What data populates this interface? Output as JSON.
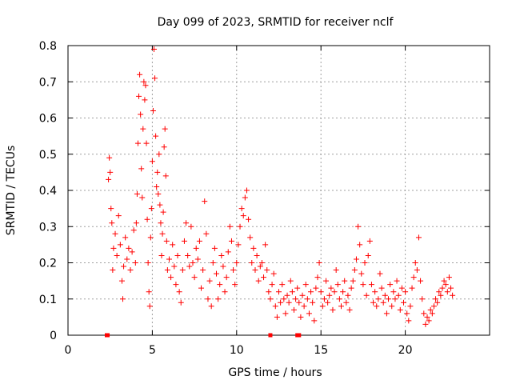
{
  "chart_data": {
    "type": "scatter",
    "title": "Day 099 of 2023, SRMTID for receiver nclf",
    "xlabel": "GPS time / hours",
    "ylabel": "SRMTID / TECUs",
    "xlim": [
      0,
      25
    ],
    "ylim": [
      0,
      0.8
    ],
    "x_ticks": [
      0,
      5,
      10,
      15,
      20
    ],
    "y_ticks": [
      0,
      0.1,
      0.2,
      0.3,
      0.4,
      0.5,
      0.6,
      0.7,
      0.8
    ],
    "x_tick_labels": [
      "0",
      "5",
      "10",
      "15",
      "20"
    ],
    "y_tick_labels": [
      "0",
      "0.1",
      "0.2",
      "0.3",
      "0.4",
      "0.5",
      "0.6",
      "0.7",
      "0.8"
    ],
    "grid": true,
    "marker": "+",
    "color": "#ff0000",
    "series": [
      {
        "name": "SRMTID",
        "points": [
          [
            2.3,
            0.0
          ],
          [
            2.35,
            0.0
          ],
          [
            12.0,
            0.0
          ],
          [
            13.6,
            0.0
          ],
          [
            13.7,
            0.0
          ],
          [
            2.4,
            0.43
          ],
          [
            2.45,
            0.49
          ],
          [
            2.5,
            0.45
          ],
          [
            2.55,
            0.35
          ],
          [
            2.6,
            0.31
          ],
          [
            2.65,
            0.18
          ],
          [
            2.7,
            0.24
          ],
          [
            2.8,
            0.28
          ],
          [
            2.9,
            0.22
          ],
          [
            3.0,
            0.33
          ],
          [
            3.1,
            0.25
          ],
          [
            3.2,
            0.15
          ],
          [
            3.25,
            0.1
          ],
          [
            3.3,
            0.19
          ],
          [
            3.4,
            0.27
          ],
          [
            3.5,
            0.21
          ],
          [
            3.6,
            0.24
          ],
          [
            3.7,
            0.18
          ],
          [
            3.8,
            0.23
          ],
          [
            3.9,
            0.29
          ],
          [
            4.0,
            0.2
          ],
          [
            4.05,
            0.31
          ],
          [
            4.1,
            0.39
          ],
          [
            4.15,
            0.53
          ],
          [
            4.2,
            0.66
          ],
          [
            4.25,
            0.72
          ],
          [
            4.3,
            0.61
          ],
          [
            4.35,
            0.46
          ],
          [
            4.4,
            0.38
          ],
          [
            4.45,
            0.57
          ],
          [
            4.5,
            0.7
          ],
          [
            4.55,
            0.65
          ],
          [
            4.6,
            0.69
          ],
          [
            4.65,
            0.53
          ],
          [
            4.7,
            0.32
          ],
          [
            4.75,
            0.2
          ],
          [
            4.8,
            0.12
          ],
          [
            4.85,
            0.08
          ],
          [
            4.9,
            0.27
          ],
          [
            4.95,
            0.35
          ],
          [
            5.0,
            0.48
          ],
          [
            5.05,
            0.62
          ],
          [
            5.1,
            0.79
          ],
          [
            5.15,
            0.71
          ],
          [
            5.2,
            0.55
          ],
          [
            5.25,
            0.41
          ],
          [
            5.3,
            0.45
          ],
          [
            5.35,
            0.39
          ],
          [
            5.4,
            0.5
          ],
          [
            5.45,
            0.36
          ],
          [
            5.5,
            0.31
          ],
          [
            5.55,
            0.22
          ],
          [
            5.6,
            0.28
          ],
          [
            5.65,
            0.34
          ],
          [
            5.7,
            0.52
          ],
          [
            5.75,
            0.57
          ],
          [
            5.8,
            0.44
          ],
          [
            5.85,
            0.26
          ],
          [
            5.9,
            0.18
          ],
          [
            6.0,
            0.21
          ],
          [
            6.1,
            0.16
          ],
          [
            6.2,
            0.25
          ],
          [
            6.3,
            0.19
          ],
          [
            6.4,
            0.14
          ],
          [
            6.5,
            0.22
          ],
          [
            6.6,
            0.12
          ],
          [
            6.7,
            0.09
          ],
          [
            6.8,
            0.18
          ],
          [
            6.9,
            0.26
          ],
          [
            7.0,
            0.31
          ],
          [
            7.1,
            0.22
          ],
          [
            7.2,
            0.19
          ],
          [
            7.3,
            0.3
          ],
          [
            7.4,
            0.2
          ],
          [
            7.5,
            0.16
          ],
          [
            7.6,
            0.24
          ],
          [
            7.7,
            0.21
          ],
          [
            7.8,
            0.26
          ],
          [
            7.9,
            0.13
          ],
          [
            8.0,
            0.18
          ],
          [
            8.1,
            0.37
          ],
          [
            8.2,
            0.28
          ],
          [
            8.3,
            0.1
          ],
          [
            8.4,
            0.15
          ],
          [
            8.5,
            0.08
          ],
          [
            8.6,
            0.2
          ],
          [
            8.7,
            0.24
          ],
          [
            8.8,
            0.17
          ],
          [
            8.9,
            0.1
          ],
          [
            9.0,
            0.14
          ],
          [
            9.1,
            0.22
          ],
          [
            9.2,
            0.19
          ],
          [
            9.3,
            0.12
          ],
          [
            9.4,
            0.16
          ],
          [
            9.5,
            0.23
          ],
          [
            9.6,
            0.3
          ],
          [
            9.7,
            0.26
          ],
          [
            9.8,
            0.18
          ],
          [
            9.9,
            0.14
          ],
          [
            10.0,
            0.2
          ],
          [
            10.1,
            0.25
          ],
          [
            10.2,
            0.3
          ],
          [
            10.3,
            0.35
          ],
          [
            10.4,
            0.33
          ],
          [
            10.5,
            0.38
          ],
          [
            10.6,
            0.4
          ],
          [
            10.7,
            0.32
          ],
          [
            10.8,
            0.27
          ],
          [
            10.9,
            0.2
          ],
          [
            11.0,
            0.24
          ],
          [
            11.1,
            0.18
          ],
          [
            11.2,
            0.22
          ],
          [
            11.3,
            0.15
          ],
          [
            11.4,
            0.19
          ],
          [
            11.5,
            0.2
          ],
          [
            11.6,
            0.16
          ],
          [
            11.7,
            0.25
          ],
          [
            11.8,
            0.18
          ],
          [
            11.9,
            0.12
          ],
          [
            12.0,
            0.1
          ],
          [
            12.1,
            0.14
          ],
          [
            12.2,
            0.17
          ],
          [
            12.3,
            0.08
          ],
          [
            12.4,
            0.05
          ],
          [
            12.5,
            0.12
          ],
          [
            12.6,
            0.09
          ],
          [
            12.7,
            0.14
          ],
          [
            12.8,
            0.1
          ],
          [
            12.9,
            0.06
          ],
          [
            13.0,
            0.11
          ],
          [
            13.1,
            0.09
          ],
          [
            13.2,
            0.15
          ],
          [
            13.3,
            0.12
          ],
          [
            13.4,
            0.07
          ],
          [
            13.5,
            0.1
          ],
          [
            13.6,
            0.13
          ],
          [
            13.7,
            0.09
          ],
          [
            13.8,
            0.05
          ],
          [
            13.9,
            0.11
          ],
          [
            14.0,
            0.08
          ],
          [
            14.1,
            0.14
          ],
          [
            14.2,
            0.1
          ],
          [
            14.3,
            0.06
          ],
          [
            14.4,
            0.12
          ],
          [
            14.5,
            0.09
          ],
          [
            14.6,
            0.04
          ],
          [
            14.7,
            0.13
          ],
          [
            14.8,
            0.16
          ],
          [
            14.9,
            0.2
          ],
          [
            15.0,
            0.12
          ],
          [
            15.1,
            0.08
          ],
          [
            15.2,
            0.1
          ],
          [
            15.3,
            0.15
          ],
          [
            15.4,
            0.09
          ],
          [
            15.5,
            0.11
          ],
          [
            15.6,
            0.13
          ],
          [
            15.7,
            0.07
          ],
          [
            15.8,
            0.12
          ],
          [
            15.9,
            0.18
          ],
          [
            16.0,
            0.14
          ],
          [
            16.1,
            0.1
          ],
          [
            16.2,
            0.08
          ],
          [
            16.3,
            0.12
          ],
          [
            16.4,
            0.15
          ],
          [
            16.5,
            0.09
          ],
          [
            16.6,
            0.11
          ],
          [
            16.7,
            0.07
          ],
          [
            16.8,
            0.13
          ],
          [
            16.9,
            0.15
          ],
          [
            17.0,
            0.18
          ],
          [
            17.1,
            0.21
          ],
          [
            17.2,
            0.3
          ],
          [
            17.3,
            0.25
          ],
          [
            17.4,
            0.17
          ],
          [
            17.5,
            0.14
          ],
          [
            17.6,
            0.2
          ],
          [
            17.7,
            0.11
          ],
          [
            17.8,
            0.22
          ],
          [
            17.9,
            0.26
          ],
          [
            18.0,
            0.14
          ],
          [
            18.1,
            0.09
          ],
          [
            18.2,
            0.12
          ],
          [
            18.3,
            0.08
          ],
          [
            18.4,
            0.1
          ],
          [
            18.5,
            0.17
          ],
          [
            18.6,
            0.13
          ],
          [
            18.7,
            0.09
          ],
          [
            18.8,
            0.11
          ],
          [
            18.9,
            0.06
          ],
          [
            19.0,
            0.1
          ],
          [
            19.1,
            0.14
          ],
          [
            19.2,
            0.08
          ],
          [
            19.3,
            0.12
          ],
          [
            19.4,
            0.1
          ],
          [
            19.5,
            0.15
          ],
          [
            19.6,
            0.11
          ],
          [
            19.7,
            0.07
          ],
          [
            19.8,
            0.13
          ],
          [
            19.9,
            0.09
          ],
          [
            20.0,
            0.12
          ],
          [
            20.1,
            0.06
          ],
          [
            20.2,
            0.04
          ],
          [
            20.3,
            0.08
          ],
          [
            20.4,
            0.13
          ],
          [
            20.5,
            0.16
          ],
          [
            20.6,
            0.2
          ],
          [
            20.7,
            0.18
          ],
          [
            20.8,
            0.27
          ],
          [
            20.9,
            0.15
          ],
          [
            21.0,
            0.1
          ],
          [
            21.1,
            0.06
          ],
          [
            21.2,
            0.03
          ],
          [
            21.3,
            0.05
          ],
          [
            21.4,
            0.04
          ],
          [
            21.5,
            0.07
          ],
          [
            21.6,
            0.06
          ],
          [
            21.7,
            0.08
          ],
          [
            21.8,
            0.1
          ],
          [
            21.9,
            0.09
          ],
          [
            22.0,
            0.12
          ],
          [
            22.1,
            0.11
          ],
          [
            22.2,
            0.13
          ],
          [
            22.3,
            0.15
          ],
          [
            22.4,
            0.14
          ],
          [
            22.5,
            0.12
          ],
          [
            22.6,
            0.16
          ],
          [
            22.7,
            0.13
          ],
          [
            22.8,
            0.11
          ]
        ]
      }
    ]
  }
}
